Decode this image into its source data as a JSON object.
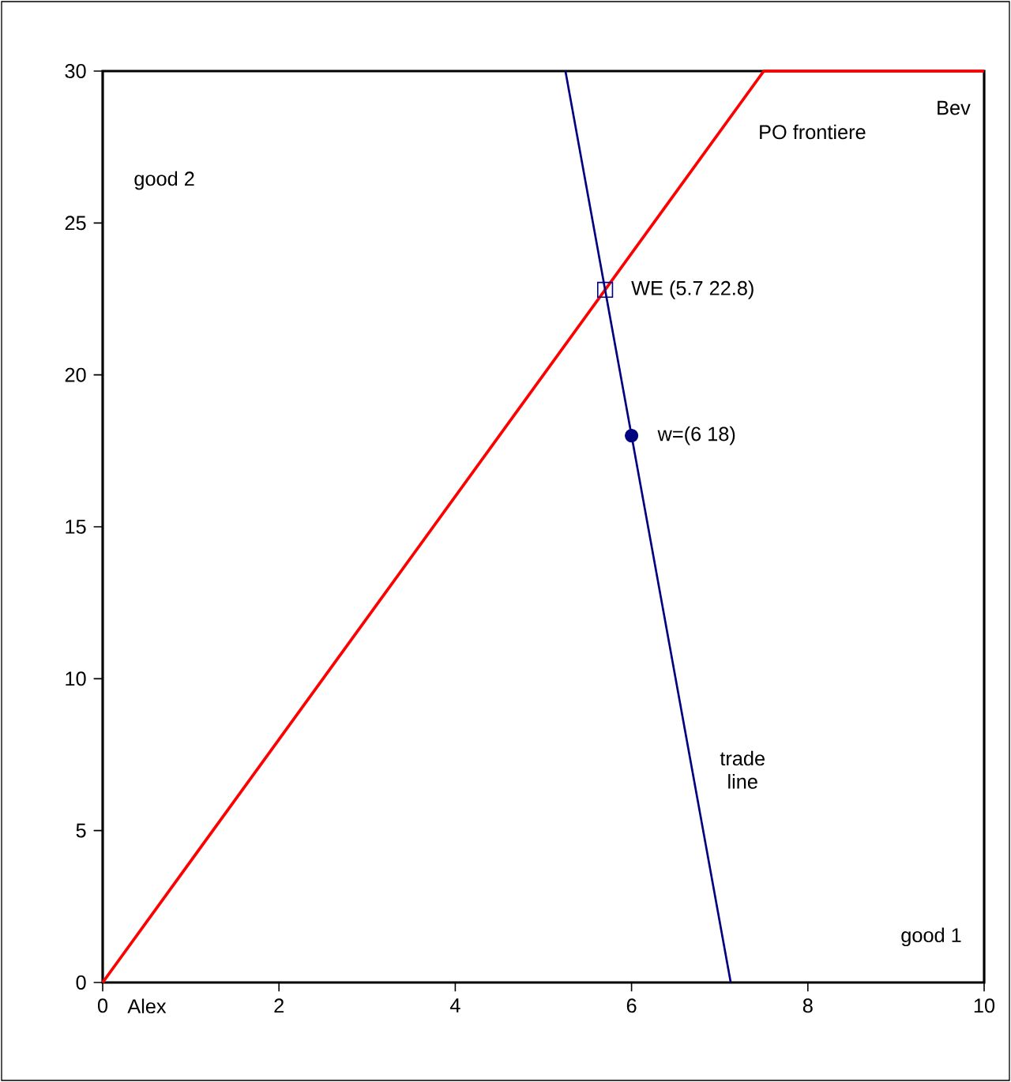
{
  "chart_data": {
    "type": "line",
    "xlabel": "good 1",
    "ylabel": "good 2",
    "xlim": [
      0,
      10
    ],
    "ylim": [
      0,
      30
    ],
    "xticks": [
      0,
      2,
      4,
      6,
      8,
      10
    ],
    "yticks": [
      0,
      5,
      10,
      15,
      20,
      25,
      30
    ],
    "series": [
      {
        "name": "PO frontiere",
        "color": "#ff0000",
        "x": [
          0,
          7.5,
          10
        ],
        "values": [
          0,
          30,
          30
        ]
      },
      {
        "name": "trade line",
        "color": "#000080",
        "x": [
          5.25,
          7.125
        ],
        "values": [
          30,
          0
        ]
      },
      {
        "type": "scatter",
        "marker": "square",
        "color": "#000080",
        "x": [
          5.7
        ],
        "values": [
          22.8
        ]
      },
      {
        "type": "scatter",
        "marker": "circle",
        "color": "#000080",
        "x": [
          6
        ],
        "values": [
          18
        ]
      }
    ],
    "annotations": [
      "Alex",
      "Bev",
      {
        "text": "WE (5.7 22.8)",
        "x": 5.7,
        "y": 22.8
      },
      {
        "text": "w=(6 18)",
        "x": 6,
        "y": 18
      }
    ]
  }
}
